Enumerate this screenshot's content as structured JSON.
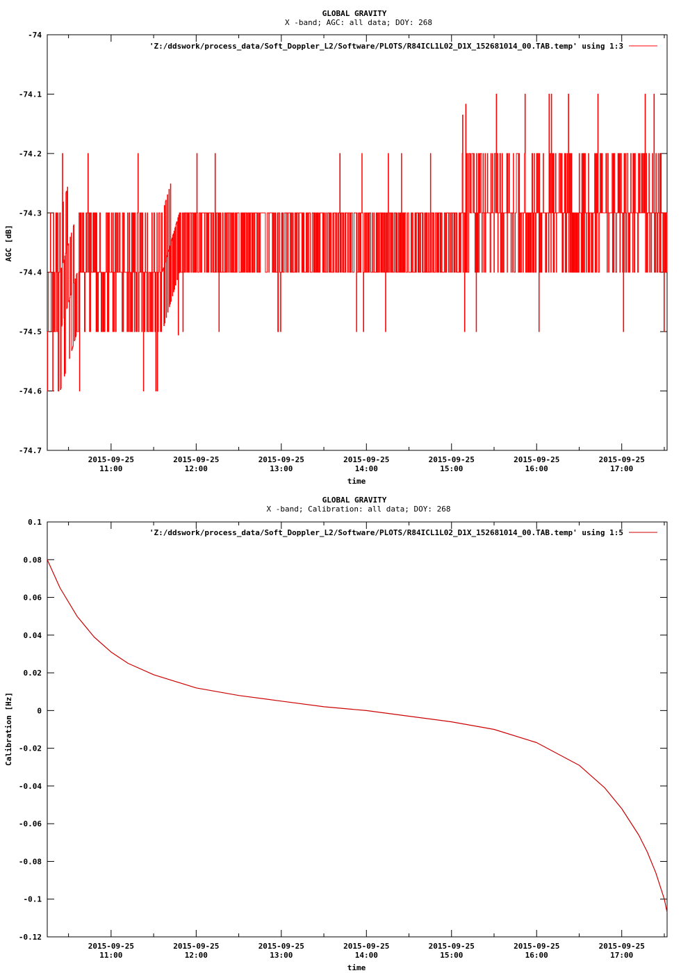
{
  "chart_data": [
    {
      "type": "line",
      "title": "GLOBAL GRAVITY",
      "subtitle": "X -band; AGC: all data; DOY: 268",
      "xlabel": "time",
      "ylabel": "AGC [dB]",
      "ylim": [
        -74.7,
        -74.0
      ],
      "yticks": [
        "-74",
        "-74.1",
        "-74.2",
        "-74.3",
        "-74.4",
        "-74.5",
        "-74.6",
        "-74.7"
      ],
      "ytick_values": [
        -74.0,
        -74.1,
        -74.2,
        -74.3,
        -74.4,
        -74.5,
        -74.6,
        -74.7
      ],
      "xlim_hours": [
        10.25,
        17.533
      ],
      "xtick_hours": [
        11,
        12,
        13,
        14,
        15,
        16,
        17
      ],
      "xtick_dates": [
        "2015-09-25",
        "2015-09-25",
        "2015-09-25",
        "2015-09-25",
        "2015-09-25",
        "2015-09-25",
        "2015-09-25"
      ],
      "xtick_times": [
        "11:00",
        "12:00",
        "13:00",
        "14:00",
        "15:00",
        "16:00",
        "17:00"
      ],
      "legend": "'Z:/ddswork/process_data/Soft_Doppler_L2/Software/PLOTS/R84ICL1L02_D1X_152681014_00.TAB.temp' using 1:3",
      "legend_position": "top-right",
      "color": "#ff0000",
      "series": [
        {
          "x": [
            10.25,
            10.4,
            10.6,
            10.8,
            11.0,
            11.2,
            11.4,
            11.6,
            11.8,
            12.0,
            12.2,
            12.4,
            12.6,
            12.8,
            13.0,
            13.2,
            13.4,
            13.6,
            13.8,
            14.0,
            14.2,
            14.4,
            14.6,
            14.8,
            15.0,
            15.2,
            15.4,
            15.6,
            15.8,
            16.0,
            16.2,
            16.4,
            16.6,
            16.8,
            17.0,
            17.2,
            17.4,
            17.533
          ],
          "values": [
            -74.5,
            -74.45,
            -74.4,
            -74.38,
            -74.37,
            -74.36,
            -74.36,
            -74.36,
            -74.35,
            -74.35,
            -74.35,
            -74.35,
            -74.35,
            -74.35,
            -74.35,
            -74.35,
            -74.35,
            -74.35,
            -74.35,
            -74.35,
            -74.35,
            -74.35,
            -74.35,
            -74.35,
            -74.35,
            -74.33,
            -74.31,
            -74.3,
            -74.3,
            -74.3,
            -74.3,
            -74.29,
            -74.29,
            -74.29,
            -74.28,
            -74.28,
            -74.27,
            -74.27
          ],
          "min_values": [
            -74.6,
            -74.6,
            -74.5,
            -74.5,
            -74.5,
            -74.5,
            -74.5,
            -74.5,
            -74.4,
            -74.4,
            -74.4,
            -74.4,
            -74.4,
            -74.4,
            -74.4,
            -74.4,
            -74.4,
            -74.4,
            -74.4,
            -74.4,
            -74.4,
            -74.4,
            -74.4,
            -74.4,
            -74.4,
            -74.4,
            -74.4,
            -74.4,
            -74.4,
            -74.4,
            -74.4,
            -74.4,
            -74.4,
            -74.4,
            -74.4,
            -74.4,
            -74.4,
            -74.4
          ],
          "max_values": [
            -74.3,
            -74.3,
            -74.3,
            -74.3,
            -74.3,
            -74.3,
            -74.3,
            -74.3,
            -74.3,
            -74.3,
            -74.3,
            -74.3,
            -74.3,
            -74.3,
            -74.3,
            -74.3,
            -74.3,
            -74.3,
            -74.3,
            -74.3,
            -74.3,
            -74.3,
            -74.3,
            -74.3,
            -74.3,
            -74.2,
            -74.2,
            -74.2,
            -74.2,
            -74.2,
            -74.2,
            -74.2,
            -74.2,
            -74.2,
            -74.2,
            -74.2,
            -74.2,
            -74.2
          ]
        }
      ]
    },
    {
      "type": "line",
      "title": "GLOBAL GRAVITY",
      "subtitle": "X -band; Calibration: all data; DOY: 268",
      "xlabel": "time",
      "ylabel": "Calibration [Hz]",
      "ylim": [
        -0.12,
        0.1
      ],
      "yticks": [
        "0.1",
        "0.08",
        "0.06",
        "0.04",
        "0.02",
        "0",
        "-0.02",
        "-0.04",
        "-0.06",
        "-0.08",
        "-0.1",
        "-0.12"
      ],
      "ytick_values": [
        0.1,
        0.08,
        0.06,
        0.04,
        0.02,
        0,
        -0.02,
        -0.04,
        -0.06,
        -0.08,
        -0.1,
        -0.12
      ],
      "xlim_hours": [
        10.25,
        17.533
      ],
      "xtick_hours": [
        11,
        12,
        13,
        14,
        15,
        16,
        17
      ],
      "xtick_dates": [
        "2015-09-25",
        "2015-09-25",
        "2015-09-25",
        "2015-09-25",
        "2015-09-25",
        "2015-09-25",
        "2015-09-25"
      ],
      "xtick_times": [
        "11:00",
        "12:00",
        "13:00",
        "14:00",
        "15:00",
        "16:00",
        "17:00"
      ],
      "legend": "'Z:/ddswork/process_data/Soft_Doppler_L2/Software/PLOTS/R84ICL1L02_D1X_152681014_00.TAB.temp' using 1:5",
      "legend_position": "top-right",
      "color": "#cc0000",
      "series": [
        {
          "x": [
            10.25,
            10.4,
            10.6,
            10.8,
            11.0,
            11.2,
            11.5,
            12.0,
            12.5,
            13.0,
            13.5,
            14.0,
            14.5,
            15.0,
            15.5,
            16.0,
            16.5,
            16.8,
            17.0,
            17.2,
            17.3,
            17.4,
            17.5,
            17.533
          ],
          "values": [
            0.08,
            0.065,
            0.05,
            0.039,
            0.031,
            0.025,
            0.019,
            0.012,
            0.008,
            0.005,
            0.002,
            0.0,
            -0.003,
            -0.006,
            -0.01,
            -0.017,
            -0.029,
            -0.041,
            -0.052,
            -0.066,
            -0.075,
            -0.086,
            -0.1,
            -0.107
          ]
        }
      ]
    }
  ]
}
